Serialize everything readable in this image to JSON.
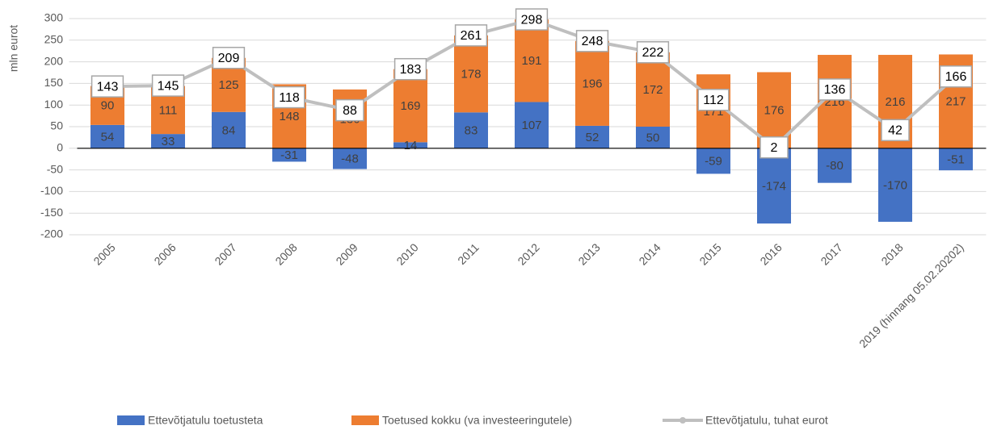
{
  "chart_data": {
    "type": "bar",
    "stacked": true,
    "ylabel": "mln eurot",
    "categories": [
      "2005",
      "2006",
      "2007",
      "2008",
      "2009",
      "2010",
      "2011",
      "2012",
      "2013",
      "2014",
      "2015",
      "2016",
      "2017",
      "2018",
      "2019 (hinnang 05.02.20202)"
    ],
    "series": [
      {
        "name": "Ettevõtjatulu toetusteta",
        "type": "bar",
        "color": "#4472c4",
        "values": [
          54,
          33,
          84,
          -31,
          -48,
          14,
          83,
          107,
          52,
          50,
          -59,
          -174,
          -80,
          -170,
          -51
        ]
      },
      {
        "name": "Toetused kokku (va investeeringutele)",
        "type": "bar",
        "color": "#ed7d31",
        "values": [
          90,
          111,
          125,
          148,
          136,
          169,
          178,
          191,
          196,
          172,
          171,
          176,
          216,
          216,
          217
        ]
      },
      {
        "name": "Ettevõtjatulu, tuhat eurot",
        "type": "line",
        "color": "#bfbfbf",
        "values": [
          143,
          145,
          209,
          118,
          88,
          183,
          261,
          298,
          248,
          222,
          112,
          2,
          136,
          42,
          166
        ]
      }
    ],
    "ylim": [
      -200,
      300
    ],
    "yticks": [
      -200,
      -150,
      -100,
      -50,
      0,
      50,
      100,
      150,
      200,
      250,
      300
    ],
    "grid": true,
    "legend": "bottom"
  }
}
